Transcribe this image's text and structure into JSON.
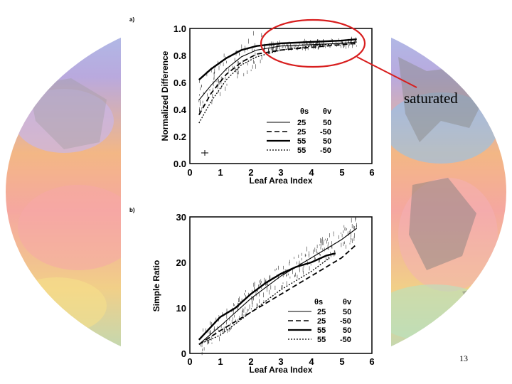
{
  "slide": {
    "annotation_text": "saturated",
    "slide_number": "13",
    "accent_color": "#d81e1e",
    "background": "colour-coded global map (decorative)"
  },
  "chart_data": [
    {
      "panel_label": "a)",
      "type": "line",
      "title": "",
      "xlabel": "Leaf Area Index",
      "ylabel": "Normalized Difference",
      "xlim": [
        0,
        6
      ],
      "ylim": [
        0.0,
        1.0
      ],
      "xticks": [
        "0",
        "1",
        "2",
        "3",
        "4",
        "5",
        "6"
      ],
      "yticks": [
        "0.0",
        "0.2",
        "0.4",
        "0.6",
        "0.8",
        "1.0"
      ],
      "legend_headers": [
        "θs",
        "θv"
      ],
      "series": [
        {
          "name": "25 50",
          "theta_s": "25",
          "theta_v": "50",
          "style": "solid-thin",
          "x": [
            0.3,
            0.7,
            1.2,
            1.7,
            2.2,
            3.0,
            4.0,
            5.0,
            5.5
          ],
          "y": [
            0.47,
            0.58,
            0.7,
            0.79,
            0.84,
            0.87,
            0.88,
            0.89,
            0.9
          ]
        },
        {
          "name": "25 -50",
          "theta_s": "25",
          "theta_v": "-50",
          "style": "dashed",
          "x": [
            0.3,
            0.7,
            1.2,
            1.7,
            2.2,
            3.0,
            4.0,
            5.0,
            5.5
          ],
          "y": [
            0.36,
            0.52,
            0.66,
            0.75,
            0.81,
            0.84,
            0.86,
            0.88,
            0.89
          ]
        },
        {
          "name": "55 50",
          "theta_s": "55",
          "theta_v": "50",
          "style": "solid-thick",
          "x": [
            0.3,
            0.7,
            1.2,
            1.7,
            2.2,
            3.0,
            4.0,
            5.0,
            5.5
          ],
          "y": [
            0.62,
            0.7,
            0.78,
            0.84,
            0.87,
            0.89,
            0.9,
            0.91,
            0.92
          ]
        },
        {
          "name": "55 -50",
          "theta_s": "55",
          "theta_v": "-50",
          "style": "dotted",
          "x": [
            0.3,
            0.7,
            1.2,
            1.7,
            2.2,
            3.0,
            4.0,
            5.0,
            5.5
          ],
          "y": [
            0.3,
            0.46,
            0.62,
            0.73,
            0.79,
            0.84,
            0.87,
            0.89,
            0.9
          ]
        }
      ]
    },
    {
      "panel_label": "b)",
      "type": "line",
      "title": "",
      "xlabel": "Leaf Area Index",
      "ylabel": "Simple Ratio",
      "xlim": [
        0,
        6
      ],
      "ylim": [
        0,
        30
      ],
      "xticks": [
        "0",
        "1",
        "2",
        "3",
        "4",
        "5",
        "6"
      ],
      "yticks": [
        "0",
        "10",
        "20",
        "30"
      ],
      "legend_headers": [
        "θs",
        "θv"
      ],
      "series": [
        {
          "name": "25 50",
          "theta_s": "25",
          "theta_v": "50",
          "style": "solid-thin",
          "x": [
            0.3,
            1.0,
            2.0,
            3.0,
            4.0,
            5.0,
            5.5
          ],
          "y": [
            2,
            6,
            12,
            17,
            21,
            25,
            27.5
          ]
        },
        {
          "name": "25 -50",
          "theta_s": "25",
          "theta_v": "-50",
          "style": "dashed",
          "x": [
            0.3,
            1.0,
            2.0,
            3.0,
            4.0,
            5.0,
            5.5
          ],
          "y": [
            2,
            5,
            9,
            13,
            17,
            21,
            24
          ]
        },
        {
          "name": "55 50",
          "theta_s": "55",
          "theta_v": "50",
          "style": "solid-thick",
          "x": [
            0.3,
            1.0,
            1.5,
            2.0,
            2.5,
            3.0,
            3.5,
            4.0,
            4.5,
            4.8
          ],
          "y": [
            3,
            8,
            10,
            13,
            15.5,
            17.5,
            19,
            20,
            21.5,
            22
          ]
        },
        {
          "name": "55 -50",
          "theta_s": "55",
          "theta_v": "-50",
          "style": "dotted",
          "x": [
            0.3,
            1.0,
            2.0,
            3.0,
            4.0,
            4.6
          ],
          "y": [
            2,
            4,
            9,
            14,
            18,
            21
          ]
        }
      ]
    }
  ]
}
